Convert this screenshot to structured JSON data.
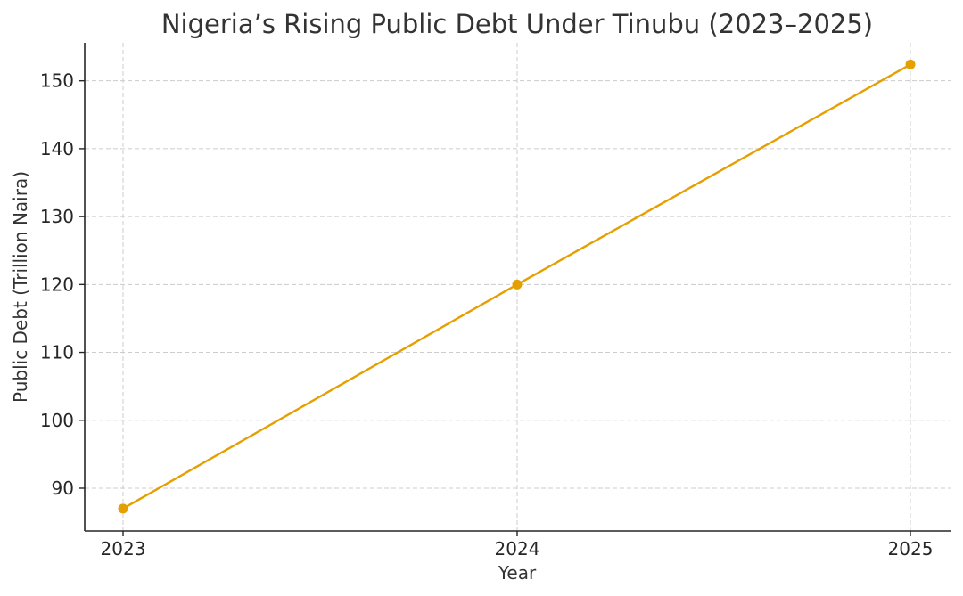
{
  "chart_data": {
    "type": "line",
    "title": "Nigeria’s Rising Public Debt Under Tinubu (2023–2025)",
    "xlabel": "Year",
    "ylabel": "Public Debt (Trillion Naira)",
    "categories": [
      "2023",
      "2024",
      "2025"
    ],
    "series": [
      {
        "name": "Public Debt",
        "values": [
          87.0,
          120.0,
          152.4
        ],
        "color": "#e69f00",
        "marker": "circle"
      }
    ],
    "yticks": [
      90,
      100,
      110,
      120,
      130,
      140,
      150
    ],
    "ylim": [
      83.7,
      155.6
    ],
    "grid": true,
    "legend": null
  },
  "ytick_labels": [
    "90",
    "100",
    "110",
    "120",
    "130",
    "140",
    "150"
  ],
  "xtick_labels": [
    "2023",
    "2024",
    "2025"
  ]
}
